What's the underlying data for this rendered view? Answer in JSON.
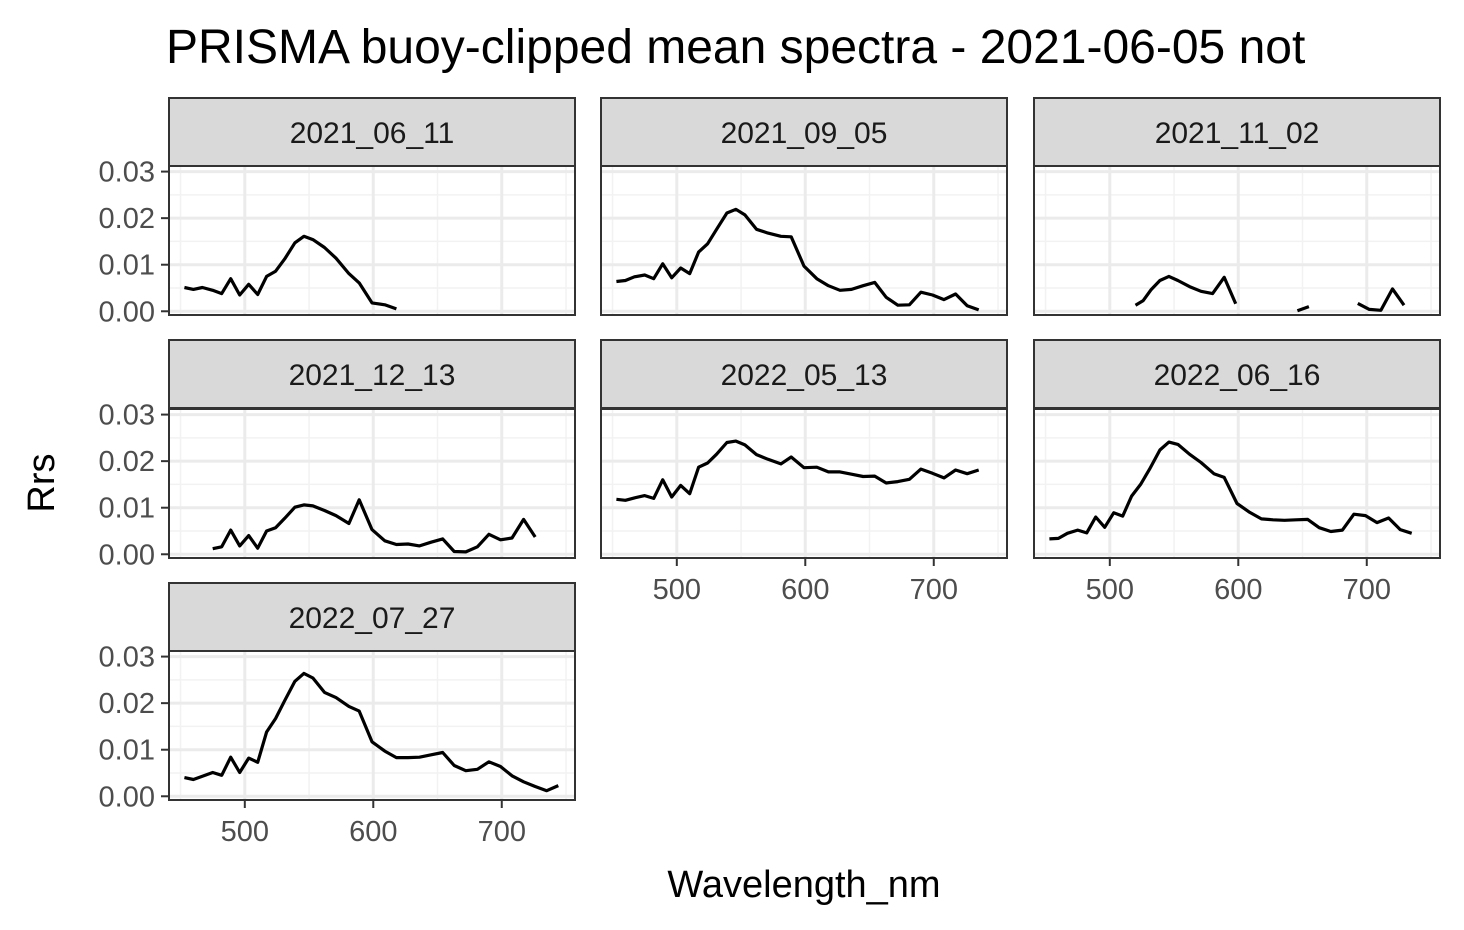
{
  "chart_data": {
    "type": "line",
    "title": "PRISMA buoy-clipped mean spectra - 2021-06-05 not",
    "xlabel": "Wavelength_nm",
    "ylabel": "Rrs",
    "xlim": [
      441,
      757
    ],
    "ylim": [
      -0.0008,
      0.0312
    ],
    "x_ticks": [
      500,
      600,
      700
    ],
    "y_ticks": [
      0,
      0.01,
      0.02,
      0.03
    ],
    "y_tick_labels": [
      "0.00",
      "0.01",
      "0.02",
      "0.03"
    ],
    "grid": true,
    "line_color": "#000000",
    "panel_border_color": "#333333",
    "strip_fill": "#d9d9d9",
    "panels": [
      {
        "name": "2021_06_11",
        "segments": [
          [
            [
              453,
              0.0051
            ],
            [
              460,
              0.0047
            ],
            [
              467,
              0.0051
            ],
            [
              475,
              0.0045
            ],
            [
              482,
              0.0038
            ],
            [
              489,
              0.007
            ],
            [
              496,
              0.0035
            ],
            [
              503,
              0.0058
            ],
            [
              510,
              0.0036
            ],
            [
              517,
              0.0075
            ],
            [
              524,
              0.0086
            ],
            [
              531,
              0.0112
            ],
            [
              539,
              0.0147
            ],
            [
              546,
              0.0161
            ],
            [
              553,
              0.0154
            ],
            [
              562,
              0.0137
            ],
            [
              571,
              0.0114
            ],
            [
              581,
              0.0081
            ],
            [
              589,
              0.0061
            ],
            [
              599,
              0.0018
            ],
            [
              609,
              0.0014
            ],
            [
              618,
              0.0005
            ]
          ]
        ]
      },
      {
        "name": "2021_09_05",
        "segments": [
          [
            [
              453,
              0.0064
            ],
            [
              460,
              0.0066
            ],
            [
              467,
              0.0074
            ],
            [
              475,
              0.0078
            ],
            [
              482,
              0.007
            ],
            [
              489,
              0.0102
            ],
            [
              496,
              0.0072
            ],
            [
              503,
              0.0093
            ],
            [
              510,
              0.0081
            ],
            [
              517,
              0.0127
            ],
            [
              524,
              0.0145
            ],
            [
              531,
              0.0176
            ],
            [
              539,
              0.0211
            ],
            [
              546,
              0.0219
            ],
            [
              553,
              0.0207
            ],
            [
              562,
              0.0176
            ],
            [
              571,
              0.0168
            ],
            [
              581,
              0.0161
            ],
            [
              589,
              0.016
            ],
            [
              599,
              0.0097
            ],
            [
              609,
              0.007
            ],
            [
              618,
              0.0055
            ],
            [
              627,
              0.0045
            ],
            [
              636,
              0.0047
            ],
            [
              645,
              0.0055
            ],
            [
              654,
              0.0062
            ],
            [
              663,
              0.003
            ],
            [
              672,
              0.0013
            ],
            [
              681,
              0.0014
            ],
            [
              690,
              0.0041
            ],
            [
              699,
              0.0035
            ],
            [
              708,
              0.0025
            ],
            [
              717,
              0.0037
            ],
            [
              726,
              0.0012
            ],
            [
              735,
              0.0003
            ]
          ]
        ]
      },
      {
        "name": "2021_11_02",
        "segments": [
          [
            [
              520,
              0.0013
            ],
            [
              526,
              0.0023
            ],
            [
              532,
              0.0046
            ],
            [
              539,
              0.0066
            ],
            [
              546,
              0.0075
            ],
            [
              553,
              0.0066
            ],
            [
              562,
              0.0053
            ],
            [
              571,
              0.0043
            ],
            [
              580,
              0.0038
            ],
            [
              589,
              0.0073
            ],
            [
              598,
              0.0016
            ]
          ],
          [
            [
              646,
              0.0001
            ],
            [
              655,
              0.001
            ]
          ],
          [
            [
              693,
              0.0017
            ],
            [
              702,
              0.0004
            ],
            [
              711,
              0.0002
            ],
            [
              720,
              0.0048
            ],
            [
              729,
              0.0013
            ]
          ]
        ]
      },
      {
        "name": "2021_12_13",
        "segments": [
          [
            [
              475,
              0.0012
            ],
            [
              482,
              0.0016
            ],
            [
              489,
              0.0052
            ],
            [
              496,
              0.0018
            ],
            [
              503,
              0.004
            ],
            [
              510,
              0.0013
            ],
            [
              517,
              0.005
            ],
            [
              524,
              0.0057
            ],
            [
              531,
              0.0077
            ],
            [
              539,
              0.0101
            ],
            [
              546,
              0.0106
            ],
            [
              553,
              0.0104
            ],
            [
              562,
              0.0094
            ],
            [
              571,
              0.0083
            ],
            [
              581,
              0.0066
            ],
            [
              589,
              0.0117
            ],
            [
              599,
              0.0053
            ],
            [
              609,
              0.0029
            ],
            [
              618,
              0.0021
            ],
            [
              627,
              0.0022
            ],
            [
              636,
              0.0018
            ],
            [
              645,
              0.0026
            ],
            [
              654,
              0.0033
            ],
            [
              663,
              0.0006
            ],
            [
              672,
              0.0005
            ],
            [
              681,
              0.0016
            ],
            [
              690,
              0.0043
            ],
            [
              699,
              0.0031
            ],
            [
              708,
              0.0035
            ],
            [
              717,
              0.0075
            ],
            [
              726,
              0.0037
            ]
          ]
        ]
      },
      {
        "name": "2022_05_13",
        "segments": [
          [
            [
              453,
              0.0118
            ],
            [
              460,
              0.0116
            ],
            [
              467,
              0.0121
            ],
            [
              475,
              0.0126
            ],
            [
              482,
              0.012
            ],
            [
              489,
              0.016
            ],
            [
              496,
              0.0123
            ],
            [
              503,
              0.0148
            ],
            [
              510,
              0.013
            ],
            [
              517,
              0.0187
            ],
            [
              524,
              0.0196
            ],
            [
              531,
              0.0215
            ],
            [
              539,
              0.024
            ],
            [
              546,
              0.0243
            ],
            [
              553,
              0.0235
            ],
            [
              562,
              0.0214
            ],
            [
              571,
              0.0204
            ],
            [
              581,
              0.0194
            ],
            [
              589,
              0.0209
            ],
            [
              599,
              0.0186
            ],
            [
              609,
              0.0187
            ],
            [
              618,
              0.0177
            ],
            [
              627,
              0.0177
            ],
            [
              636,
              0.0172
            ],
            [
              645,
              0.0167
            ],
            [
              654,
              0.0168
            ],
            [
              663,
              0.0153
            ],
            [
              672,
              0.0156
            ],
            [
              681,
              0.0161
            ],
            [
              690,
              0.0183
            ],
            [
              699,
              0.0174
            ],
            [
              708,
              0.0164
            ],
            [
              717,
              0.0181
            ],
            [
              726,
              0.0173
            ],
            [
              735,
              0.0181
            ]
          ]
        ]
      },
      {
        "name": "2022_06_16",
        "segments": [
          [
            [
              453,
              0.0033
            ],
            [
              460,
              0.0034
            ],
            [
              467,
              0.0045
            ],
            [
              475,
              0.0052
            ],
            [
              482,
              0.0046
            ],
            [
              489,
              0.008
            ],
            [
              496,
              0.0058
            ],
            [
              503,
              0.0089
            ],
            [
              510,
              0.0082
            ],
            [
              517,
              0.0125
            ],
            [
              524,
              0.015
            ],
            [
              531,
              0.0183
            ],
            [
              539,
              0.0224
            ],
            [
              546,
              0.0241
            ],
            [
              553,
              0.0236
            ],
            [
              562,
              0.0215
            ],
            [
              571,
              0.0197
            ],
            [
              581,
              0.0173
            ],
            [
              589,
              0.0165
            ],
            [
              599,
              0.0109
            ],
            [
              609,
              0.009
            ],
            [
              618,
              0.0076
            ],
            [
              627,
              0.0074
            ],
            [
              636,
              0.0073
            ],
            [
              645,
              0.0074
            ],
            [
              654,
              0.0075
            ],
            [
              663,
              0.0057
            ],
            [
              672,
              0.0049
            ],
            [
              681,
              0.0052
            ],
            [
              690,
              0.0086
            ],
            [
              699,
              0.0083
            ],
            [
              708,
              0.0068
            ],
            [
              717,
              0.0078
            ],
            [
              726,
              0.0053
            ],
            [
              735,
              0.0045
            ]
          ]
        ]
      },
      {
        "name": "2022_07_27",
        "segments": [
          [
            [
              453,
              0.004
            ],
            [
              460,
              0.0036
            ],
            [
              467,
              0.0043
            ],
            [
              475,
              0.0051
            ],
            [
              482,
              0.0045
            ],
            [
              489,
              0.0084
            ],
            [
              496,
              0.0051
            ],
            [
              503,
              0.0082
            ],
            [
              510,
              0.0073
            ],
            [
              517,
              0.0138
            ],
            [
              524,
              0.0167
            ],
            [
              531,
              0.0205
            ],
            [
              539,
              0.0247
            ],
            [
              546,
              0.0264
            ],
            [
              553,
              0.0254
            ],
            [
              562,
              0.0223
            ],
            [
              571,
              0.0212
            ],
            [
              581,
              0.0193
            ],
            [
              589,
              0.0183
            ],
            [
              599,
              0.0117
            ],
            [
              609,
              0.0097
            ],
            [
              618,
              0.0083
            ],
            [
              627,
              0.0083
            ],
            [
              636,
              0.0084
            ],
            [
              645,
              0.0089
            ],
            [
              654,
              0.0094
            ],
            [
              663,
              0.0066
            ],
            [
              672,
              0.0055
            ],
            [
              681,
              0.0058
            ],
            [
              690,
              0.0074
            ],
            [
              699,
              0.0064
            ],
            [
              708,
              0.0044
            ],
            [
              717,
              0.0031
            ],
            [
              726,
              0.0021
            ],
            [
              735,
              0.0012
            ],
            [
              744,
              0.0023
            ]
          ]
        ]
      }
    ]
  }
}
